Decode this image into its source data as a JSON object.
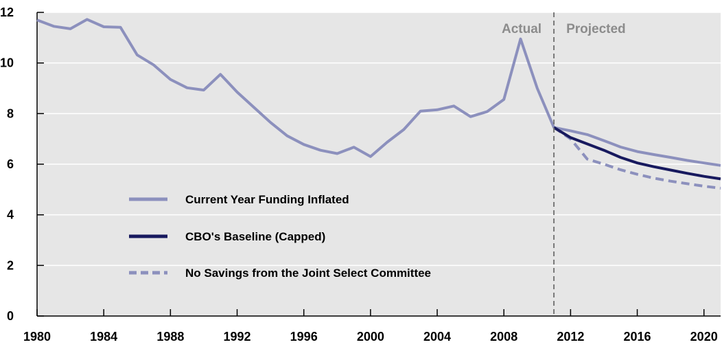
{
  "chart_data": {
    "type": "line",
    "xlim": [
      1980,
      2021
    ],
    "ylim": [
      0,
      12
    ],
    "x_ticks": [
      1980,
      1984,
      1988,
      1992,
      1996,
      2000,
      2004,
      2008,
      2012,
      2016,
      2020
    ],
    "y_ticks": [
      0,
      2,
      4,
      6,
      8,
      10,
      12
    ],
    "grid": "horizontal",
    "divider_x": 2011,
    "region_labels": {
      "left": "Actual",
      "right": "Projected"
    },
    "legend_position": "lower-left",
    "series": [
      {
        "name": "Current Year Funding Inflated",
        "color": "#8c90bd",
        "style": "solid",
        "x": [
          1980,
          1981,
          1982,
          1983,
          1984,
          1985,
          1986,
          1987,
          1988,
          1989,
          1990,
          1991,
          1992,
          1993,
          1994,
          1995,
          1996,
          1997,
          1998,
          1999,
          2000,
          2001,
          2002,
          2003,
          2004,
          2005,
          2006,
          2007,
          2008,
          2009,
          2010,
          2011,
          2012,
          2013,
          2014,
          2015,
          2016,
          2017,
          2018,
          2019,
          2020,
          2021
        ],
        "y": [
          11.7,
          11.45,
          11.35,
          11.72,
          11.43,
          11.41,
          10.32,
          9.92,
          9.35,
          9.02,
          8.93,
          9.55,
          8.85,
          8.25,
          7.65,
          7.12,
          6.78,
          6.55,
          6.42,
          6.67,
          6.3,
          6.87,
          7.37,
          8.1,
          8.15,
          8.3,
          7.88,
          8.08,
          8.56,
          10.95,
          9.0,
          7.45,
          7.32,
          7.17,
          6.93,
          6.68,
          6.5,
          6.38,
          6.27,
          6.15,
          6.05,
          5.95
        ]
      },
      {
        "name": "CBO's Baseline (Capped)",
        "color": "#17195e",
        "style": "solid",
        "x": [
          2011,
          2012,
          2013,
          2014,
          2015,
          2016,
          2017,
          2018,
          2019,
          2020,
          2021
        ],
        "y": [
          7.45,
          7.05,
          6.8,
          6.55,
          6.27,
          6.05,
          5.9,
          5.77,
          5.64,
          5.52,
          5.42
        ]
      },
      {
        "name": "No Savings from the Joint Select Committee",
        "color": "#8c90bd",
        "style": "dashed",
        "x": [
          2011,
          2012,
          2013,
          2014,
          2015,
          2016,
          2017,
          2018,
          2019,
          2020,
          2021
        ],
        "y": [
          7.45,
          7.0,
          6.2,
          6.0,
          5.78,
          5.6,
          5.45,
          5.33,
          5.23,
          5.13,
          5.05
        ]
      }
    ]
  }
}
